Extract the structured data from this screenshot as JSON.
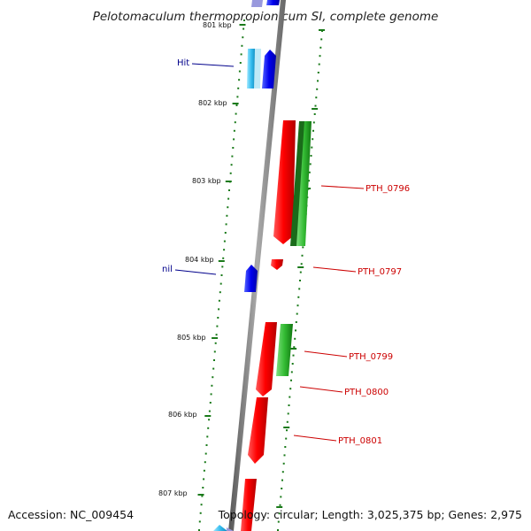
{
  "header": {
    "title": "Pelotomaculum thermopropionicum SI, complete genome"
  },
  "footer": {
    "accession": "Accession: NC_009454",
    "topology": "Topology: circular; Length: 3,025,375 bp; Genes: 2,975"
  },
  "scale_labels": [
    "801 kbp",
    "802 kbp",
    "803 kbp",
    "804 kbp",
    "805 kbp",
    "806 kbp",
    "807 kbp"
  ],
  "feature_labels": {
    "hit": "Hit",
    "nil": "nil",
    "pth_0796": "PTH_0796",
    "pth_0797": "PTH_0797",
    "pth_0799": "PTH_0799",
    "pth_0800": "PTH_0800",
    "pth_0801": "PTH_0801"
  },
  "colors": {
    "forward_gene": "#e00000",
    "reverse_gene": "#1f9a1f",
    "hit": "#0000dd",
    "hit_alt": "#22bbdd",
    "axis": "#808080",
    "tick": "#1a7a1a",
    "label_red": "#cc0000",
    "label_blue": "#00008b"
  }
}
